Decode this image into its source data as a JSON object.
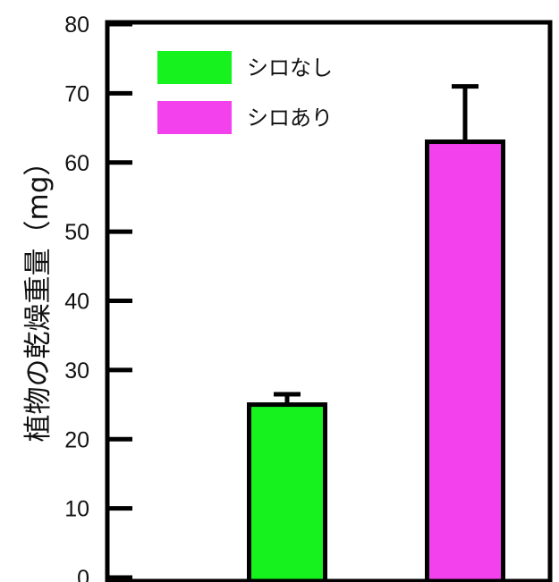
{
  "chart_data": {
    "type": "bar",
    "categories": [
      "シロなし",
      "シロあり"
    ],
    "values": [
      25,
      63
    ],
    "error": [
      1.5,
      8
    ],
    "colors": [
      "#15f21d",
      "#f441ee"
    ],
    "ylabel": "植物の乾燥重量（mg）",
    "ylim": [
      0,
      80
    ],
    "yticks": [
      0,
      10,
      20,
      30,
      40,
      50,
      60,
      70,
      80
    ],
    "legend": [
      {
        "label": "シロなし",
        "color": "#15f21d"
      },
      {
        "label": "シロあり",
        "color": "#f441ee"
      }
    ],
    "legend_position": "top-left",
    "grid": false
  }
}
